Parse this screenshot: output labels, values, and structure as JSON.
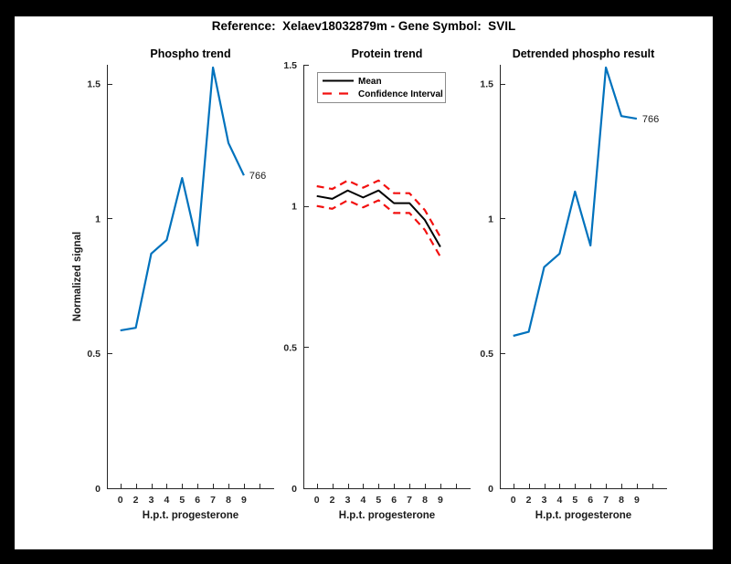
{
  "header": {
    "title": "Reference:  Xelaev18032879m - Gene Symbol:  SVIL"
  },
  "colors": {
    "blue": "#0072BD",
    "red": "#F21110",
    "black": "#000000",
    "axis": "#262626",
    "legend_border": "#8C8C8C",
    "figure_bg": "#FFFFFF",
    "page_bg": "#000000"
  },
  "axes": {
    "x_label": "H.p.t. progesterone",
    "y_label": "Normalized signal",
    "x_tick_labels": [
      "0",
      "2",
      "3",
      "4",
      "5",
      "6",
      "7",
      "8",
      "9",
      ""
    ],
    "y_tick_labels": [
      "0",
      "0.5",
      "1",
      "1.5"
    ],
    "y_tick_values": [
      0,
      0.5,
      1,
      1.5
    ]
  },
  "chart_data": [
    {
      "type": "line",
      "title": "Phospho trend",
      "xlabel": "H.p.t. progesterone",
      "ylabel": "Normalized signal",
      "x": [
        0,
        2,
        3,
        4,
        5,
        6,
        7,
        8,
        9
      ],
      "ylim": [
        0,
        1.57
      ],
      "y_ticks": [
        0,
        0.5,
        1,
        1.5
      ],
      "grid": false,
      "series": [
        {
          "name": "phospho-signal",
          "color_key": "blue",
          "style": "solid",
          "values": [
            0.585,
            0.595,
            0.87,
            0.92,
            1.15,
            0.9,
            1.56,
            1.28,
            1.16
          ]
        }
      ],
      "end_label": "766",
      "legend": null
    },
    {
      "type": "line",
      "title": "Protein trend",
      "xlabel": "H.p.t. progesterone",
      "ylabel": "",
      "x": [
        0,
        2,
        3,
        4,
        5,
        6,
        7,
        8,
        9
      ],
      "ylim": [
        0,
        1.5
      ],
      "y_ticks": [
        0,
        0.5,
        1,
        1.5
      ],
      "grid": false,
      "series": [
        {
          "name": "mean",
          "color_key": "black",
          "style": "solid",
          "values": [
            1.035,
            1.025,
            1.055,
            1.03,
            1.055,
            1.01,
            1.01,
            0.95,
            0.855
          ]
        },
        {
          "name": "confidence-interval-upper",
          "color_key": "red",
          "style": "dashed",
          "values": [
            1.07,
            1.06,
            1.09,
            1.065,
            1.09,
            1.045,
            1.045,
            0.985,
            0.89
          ]
        },
        {
          "name": "confidence-interval-lower",
          "color_key": "red",
          "style": "dashed",
          "values": [
            1.0,
            0.99,
            1.02,
            0.995,
            1.02,
            0.975,
            0.975,
            0.915,
            0.82
          ]
        }
      ],
      "end_label": null,
      "legend": {
        "position": "top-left",
        "entries": [
          {
            "label": "Mean",
            "color_key": "black",
            "style": "solid"
          },
          {
            "label": "Confidence Interval",
            "color_key": "red",
            "style": "dashed"
          }
        ]
      }
    },
    {
      "type": "line",
      "title": "Detrended phospho result",
      "xlabel": "H.p.t. progesterone",
      "ylabel": "",
      "x": [
        0,
        2,
        3,
        4,
        5,
        6,
        7,
        8,
        9
      ],
      "ylim": [
        0,
        1.57
      ],
      "y_ticks": [
        0,
        0.5,
        1,
        1.5
      ],
      "grid": false,
      "series": [
        {
          "name": "detrended-phospho-signal",
          "color_key": "blue",
          "style": "solid",
          "values": [
            0.565,
            0.58,
            0.82,
            0.87,
            1.1,
            0.9,
            1.56,
            1.38,
            1.37
          ]
        }
      ],
      "end_label": "766",
      "legend": null
    }
  ]
}
